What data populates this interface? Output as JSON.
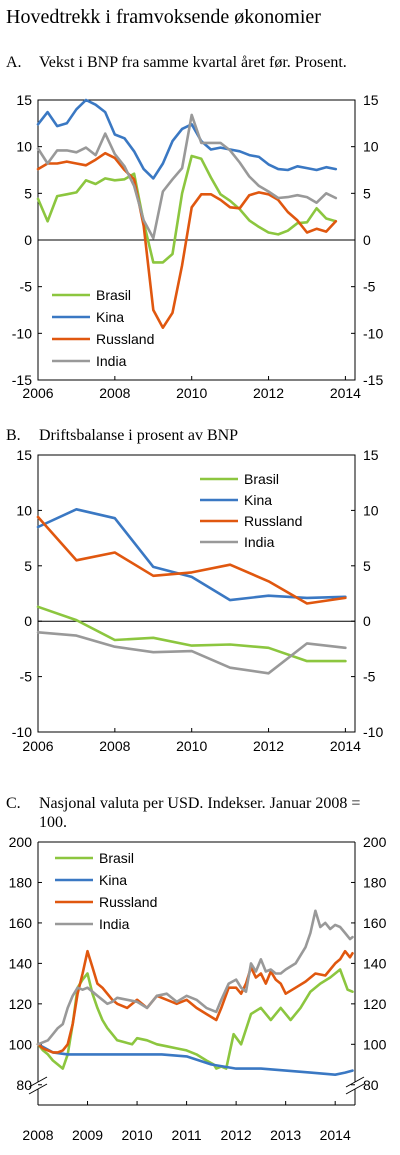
{
  "title": "Hovedtrekk i framvoksende økonomier",
  "colors": {
    "Brasil": "#8cc63f",
    "Kina": "#3a78c3",
    "Russland": "#e0570f",
    "India": "#999999"
  },
  "chart_data": [
    {
      "panel": "A.",
      "title": "Vekst i BNP fra samme kvartal året før. Prosent.",
      "type": "line",
      "xlim": [
        2006,
        2014.25
      ],
      "ylim": [
        -15,
        15
      ],
      "x_ticks": [
        2006,
        2008,
        2010,
        2012,
        2014
      ],
      "y_ticks": [
        -15,
        -10,
        -5,
        0,
        5,
        10,
        15
      ],
      "legend": "bottom-left",
      "series": [
        {
          "name": "Brasil",
          "x": [
            2006.0,
            2006.25,
            2006.5,
            2006.75,
            2007.0,
            2007.25,
            2007.5,
            2007.75,
            2008.0,
            2008.25,
            2008.5,
            2008.75,
            2009.0,
            2009.25,
            2009.5,
            2009.75,
            2010.0,
            2010.25,
            2010.5,
            2010.75,
            2011.0,
            2011.25,
            2011.5,
            2011.75,
            2012.0,
            2012.25,
            2012.5,
            2012.75,
            2013.0,
            2013.25,
            2013.5,
            2013.75
          ],
          "values": [
            4.4,
            2.0,
            4.7,
            4.9,
            5.1,
            6.4,
            6.0,
            6.6,
            6.4,
            6.5,
            7.1,
            1.9,
            -2.4,
            -2.4,
            -1.5,
            5.0,
            9.0,
            8.7,
            6.7,
            4.9,
            4.2,
            3.3,
            2.1,
            1.4,
            0.8,
            0.6,
            1.0,
            1.8,
            1.9,
            3.4,
            2.3,
            2.0
          ]
        },
        {
          "name": "Kina",
          "x": [
            2006.0,
            2006.25,
            2006.5,
            2006.75,
            2007.0,
            2007.25,
            2007.5,
            2007.75,
            2008.0,
            2008.25,
            2008.5,
            2008.75,
            2009.0,
            2009.25,
            2009.5,
            2009.75,
            2010.0,
            2010.25,
            2010.5,
            2010.75,
            2011.0,
            2011.25,
            2011.5,
            2011.75,
            2012.0,
            2012.25,
            2012.5,
            2012.75,
            2013.0,
            2013.25,
            2013.5,
            2013.75
          ],
          "values": [
            12.4,
            13.7,
            12.2,
            12.5,
            14.0,
            15.0,
            14.5,
            13.7,
            11.3,
            10.9,
            9.5,
            7.6,
            6.6,
            8.2,
            10.6,
            11.9,
            12.4,
            10.6,
            9.7,
            9.9,
            9.7,
            9.5,
            9.1,
            8.9,
            8.1,
            7.6,
            7.5,
            7.9,
            7.7,
            7.5,
            7.8,
            7.6
          ]
        },
        {
          "name": "Russland",
          "x": [
            2006.0,
            2006.25,
            2006.5,
            2006.75,
            2007.0,
            2007.25,
            2007.5,
            2007.75,
            2008.0,
            2008.25,
            2008.5,
            2008.75,
            2009.0,
            2009.25,
            2009.5,
            2009.75,
            2010.0,
            2010.25,
            2010.5,
            2010.75,
            2011.0,
            2011.25,
            2011.5,
            2011.75,
            2012.0,
            2012.25,
            2012.5,
            2012.75,
            2013.0,
            2013.25,
            2013.5,
            2013.75
          ],
          "values": [
            7.6,
            8.2,
            8.2,
            8.4,
            8.2,
            8.0,
            8.6,
            9.3,
            8.8,
            7.5,
            6.5,
            1.5,
            -7.5,
            -9.4,
            -7.8,
            -2.7,
            3.5,
            4.9,
            4.9,
            4.3,
            3.5,
            3.4,
            4.8,
            5.1,
            4.9,
            4.3,
            3.0,
            2.1,
            0.8,
            1.2,
            0.9,
            2.0
          ]
        },
        {
          "name": "India",
          "x": [
            2006.0,
            2006.25,
            2006.5,
            2006.75,
            2007.0,
            2007.25,
            2007.5,
            2007.75,
            2008.0,
            2008.25,
            2008.5,
            2008.75,
            2009.0,
            2009.25,
            2009.5,
            2009.75,
            2010.0,
            2010.25,
            2010.5,
            2010.75,
            2011.0,
            2011.25,
            2011.5,
            2011.75,
            2012.0,
            2012.25,
            2012.5,
            2012.75,
            2013.0,
            2013.25,
            2013.5,
            2013.75
          ],
          "values": [
            9.8,
            8.2,
            9.6,
            9.6,
            9.4,
            9.9,
            9.1,
            11.4,
            9.2,
            7.9,
            5.8,
            2.1,
            0.2,
            5.2,
            6.5,
            7.7,
            13.4,
            10.4,
            10.4,
            10.4,
            9.6,
            8.3,
            6.8,
            5.8,
            5.2,
            4.5,
            4.6,
            4.8,
            4.6,
            4.0,
            5.0,
            4.5
          ]
        }
      ]
    },
    {
      "panel": "B.",
      "title": "Driftsbalanse i prosent av BNP",
      "type": "line",
      "xlim": [
        2006,
        2014.25
      ],
      "ylim": [
        -10,
        15
      ],
      "x_ticks": [
        2006,
        2008,
        2010,
        2012,
        2014
      ],
      "y_ticks": [
        -10,
        -5,
        0,
        5,
        10,
        15
      ],
      "legend": "top-right",
      "series": [
        {
          "name": "Brasil",
          "x": [
            2006,
            2007,
            2008,
            2009,
            2010,
            2011,
            2012,
            2013,
            2014
          ],
          "values": [
            1.3,
            0.1,
            -1.7,
            -1.5,
            -2.2,
            -2.1,
            -2.4,
            -3.6,
            -3.6
          ]
        },
        {
          "name": "Kina",
          "x": [
            2006,
            2007,
            2008,
            2009,
            2010,
            2011,
            2012,
            2013,
            2014
          ],
          "values": [
            8.5,
            10.1,
            9.3,
            4.9,
            4.0,
            1.9,
            2.3,
            2.1,
            2.2
          ]
        },
        {
          "name": "Russland",
          "x": [
            2006,
            2007,
            2008,
            2009,
            2010,
            2011,
            2012,
            2013,
            2014
          ],
          "values": [
            9.4,
            5.5,
            6.2,
            4.1,
            4.4,
            5.1,
            3.6,
            1.6,
            2.1
          ]
        },
        {
          "name": "India",
          "x": [
            2006,
            2007,
            2008,
            2009,
            2010,
            2011,
            2012,
            2013,
            2014
          ],
          "values": [
            -1.0,
            -1.3,
            -2.3,
            -2.8,
            -2.7,
            -4.2,
            -4.7,
            -2.0,
            -2.4
          ]
        }
      ]
    },
    {
      "panel": "C.",
      "title": "Nasjonal valuta per USD. Indekser. Januar 2008 = 100.",
      "type": "line",
      "xlim": [
        2008,
        2014.4
      ],
      "ylim": [
        70,
        200
      ],
      "x_ticks": [
        2008,
        2009,
        2010,
        2011,
        2012,
        2013,
        2014
      ],
      "y_ticks": [
        80,
        100,
        120,
        140,
        160,
        180,
        200
      ],
      "axis_break": true,
      "legend": "top-left",
      "series": [
        {
          "name": "Brasil",
          "x": [
            2008.0,
            2008.1,
            2008.2,
            2008.3,
            2008.4,
            2008.5,
            2008.6,
            2008.7,
            2008.8,
            2008.9,
            2009.0,
            2009.1,
            2009.2,
            2009.3,
            2009.4,
            2009.5,
            2009.6,
            2009.75,
            2009.9,
            2010.0,
            2010.2,
            2010.4,
            2010.6,
            2010.8,
            2011.0,
            2011.2,
            2011.4,
            2011.55,
            2011.6,
            2011.7,
            2011.8,
            2011.95,
            2012.1,
            2012.3,
            2012.5,
            2012.7,
            2012.9,
            2013.1,
            2013.3,
            2013.5,
            2013.7,
            2013.9,
            2014.1,
            2014.25,
            2014.35
          ],
          "values": [
            100,
            97,
            95,
            92,
            90,
            88,
            95,
            110,
            128,
            132,
            135,
            125,
            118,
            112,
            108,
            105,
            102,
            101,
            100,
            103,
            102,
            100,
            99,
            98,
            97,
            95,
            92,
            90,
            88,
            89,
            88,
            105,
            100,
            115,
            118,
            112,
            118,
            112,
            118,
            126,
            130,
            133,
            137,
            127,
            126
          ]
        },
        {
          "name": "Kina",
          "x": [
            2008.0,
            2008.3,
            2008.6,
            2009.0,
            2009.5,
            2010.0,
            2010.5,
            2011.0,
            2011.5,
            2012.0,
            2012.5,
            2013.0,
            2013.5,
            2014.0,
            2014.2,
            2014.35
          ],
          "values": [
            100,
            96,
            95,
            95,
            95,
            95,
            95,
            94,
            90,
            88,
            88,
            87,
            86,
            85,
            86,
            87
          ]
        },
        {
          "name": "Russland",
          "x": [
            2008.0,
            2008.1,
            2008.2,
            2008.3,
            2008.4,
            2008.5,
            2008.6,
            2008.7,
            2008.8,
            2008.9,
            2009.0,
            2009.1,
            2009.2,
            2009.3,
            2009.4,
            2009.5,
            2009.6,
            2009.8,
            2010.0,
            2010.2,
            2010.4,
            2010.6,
            2010.8,
            2011.0,
            2011.2,
            2011.4,
            2011.6,
            2011.7,
            2011.85,
            2012.0,
            2012.1,
            2012.2,
            2012.3,
            2012.4,
            2012.5,
            2012.6,
            2012.7,
            2012.8,
            2012.9,
            2013.0,
            2013.2,
            2013.4,
            2013.6,
            2013.8,
            2014.0,
            2014.1,
            2014.2,
            2014.3,
            2014.35
          ],
          "values": [
            100,
            98,
            97,
            96,
            96,
            97,
            100,
            110,
            125,
            135,
            146,
            138,
            130,
            128,
            125,
            122,
            120,
            118,
            122,
            118,
            124,
            122,
            120,
            122,
            118,
            115,
            112,
            118,
            128,
            128,
            125,
            130,
            138,
            133,
            135,
            130,
            136,
            132,
            130,
            125,
            128,
            131,
            135,
            134,
            140,
            142,
            146,
            143,
            145
          ]
        },
        {
          "name": "India",
          "x": [
            2008.0,
            2008.1,
            2008.2,
            2008.3,
            2008.4,
            2008.5,
            2008.6,
            2008.7,
            2008.8,
            2008.9,
            2009.0,
            2009.1,
            2009.2,
            2009.3,
            2009.4,
            2009.5,
            2009.6,
            2009.8,
            2010.0,
            2010.2,
            2010.4,
            2010.6,
            2010.8,
            2011.0,
            2011.2,
            2011.4,
            2011.6,
            2011.7,
            2011.85,
            2012.0,
            2012.1,
            2012.2,
            2012.3,
            2012.4,
            2012.5,
            2012.6,
            2012.7,
            2012.8,
            2012.9,
            2013.0,
            2013.2,
            2013.4,
            2013.5,
            2013.6,
            2013.7,
            2013.8,
            2013.9,
            2014.0,
            2014.1,
            2014.2,
            2014.3,
            2014.35
          ],
          "values": [
            100,
            101,
            102,
            105,
            108,
            110,
            118,
            124,
            128,
            127,
            128,
            126,
            124,
            122,
            120,
            121,
            123,
            122,
            121,
            118,
            124,
            125,
            121,
            124,
            122,
            118,
            116,
            122,
            130,
            132,
            128,
            126,
            140,
            136,
            142,
            136,
            137,
            135,
            135,
            137,
            140,
            148,
            155,
            166,
            158,
            160,
            157,
            159,
            158,
            155,
            152,
            153
          ]
        }
      ]
    }
  ]
}
